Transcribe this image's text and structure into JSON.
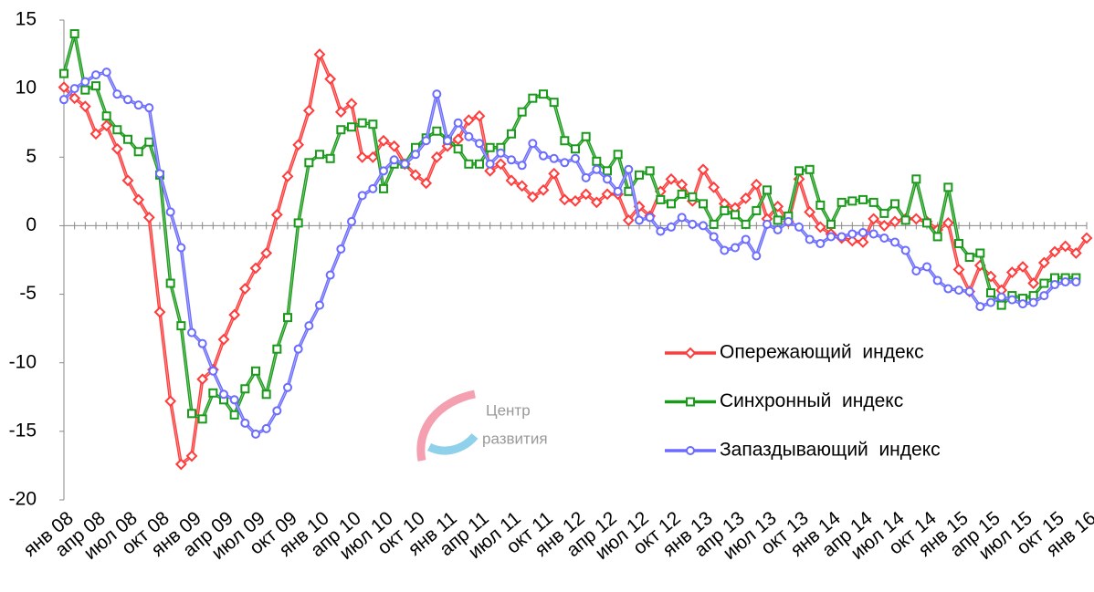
{
  "chart_data": {
    "type": "line",
    "categories": [
      "янв 08",
      null,
      null,
      "апр 08",
      null,
      null,
      "июл 08",
      null,
      null,
      "окт 08",
      null,
      null,
      "янв 09",
      null,
      null,
      "апр 09",
      null,
      null,
      "июл 09",
      null,
      null,
      "окт 09",
      null,
      null,
      "янв 10",
      null,
      null,
      "апр 10",
      null,
      null,
      "июл 10",
      null,
      null,
      "окт 10",
      null,
      null,
      "янв 11",
      null,
      null,
      "апр 11",
      null,
      null,
      "июл 11",
      null,
      null,
      "окт 11",
      null,
      null,
      "янв 12",
      null,
      null,
      "апр 12",
      null,
      null,
      "июл 12",
      null,
      null,
      "окт 12",
      null,
      null,
      "янв 13",
      null,
      null,
      "апр 13",
      null,
      null,
      "июл 13",
      null,
      null,
      "окт 13",
      null,
      null,
      "янв 14",
      null,
      null,
      "апр 14",
      null,
      null,
      "июл 14",
      null,
      null,
      "окт 14",
      null,
      null,
      "янв 15",
      null,
      null,
      "апр 15",
      null,
      null,
      "июл 15",
      null,
      null,
      "окт 15",
      null,
      null,
      "янв 16"
    ],
    "series": [
      {
        "name": "Опережающий  индекс",
        "color": "#ff3b3b",
        "marker": "diamond",
        "values": [
          10.1,
          9.3,
          8.7,
          6.7,
          7.3,
          5.6,
          3.3,
          1.9,
          0.6,
          -6.3,
          -12.8,
          -17.4,
          -16.8,
          -11.2,
          -10.5,
          -8.3,
          -6.5,
          -4.6,
          -3.1,
          -2.0,
          0.8,
          3.6,
          5.9,
          8.4,
          12.5,
          10.7,
          8.3,
          8.9,
          5.0,
          5.0,
          6.2,
          5.8,
          4.5,
          3.7,
          3.1,
          5.0,
          5.8,
          6.3,
          7.7,
          8.0,
          4.0,
          4.5,
          3.3,
          2.9,
          2.1,
          2.6,
          3.8,
          1.9,
          1.8,
          2.3,
          1.7,
          2.3,
          2.3,
          0.4,
          1.4,
          0.7,
          2.5,
          3.4,
          3.0,
          1.8,
          4.1,
          2.8,
          1.6,
          1.3,
          2.0,
          3.0,
          0.5,
          1.4,
          0.3,
          3.4,
          1.0,
          -0.1,
          -0.6,
          -0.9,
          -1.1,
          -1.2,
          0.5,
          0.0,
          0.3,
          0.5,
          0.5,
          0.3,
          -0.3,
          0.2,
          -3.2,
          -4.8,
          -2.9,
          -3.7,
          -4.7,
          -3.4,
          -3.0,
          -4.2,
          -2.7,
          -1.9,
          -1.5,
          -2.0,
          -0.9
        ]
      },
      {
        "name": "Синхронный  индекс",
        "color": "#1a9a1a",
        "marker": "square",
        "values": [
          11.1,
          14.0,
          9.9,
          10.2,
          8.0,
          7.0,
          6.3,
          5.4,
          6.1,
          3.7,
          -4.2,
          -7.3,
          -13.7,
          -14.1,
          -12.2,
          -12.7,
          -13.8,
          -11.9,
          -10.6,
          -12.3,
          -9.0,
          -6.7,
          0.2,
          4.6,
          5.2,
          4.9,
          7.0,
          7.2,
          7.5,
          7.4,
          2.7,
          4.5,
          4.5,
          5.7,
          6.4,
          6.9,
          6.3,
          5.6,
          4.5,
          4.5,
          5.7,
          5.7,
          6.7,
          8.3,
          9.3,
          9.6,
          9.0,
          6.2,
          5.6,
          6.5,
          4.7,
          4.0,
          5.2,
          2.5,
          3.7,
          4.0,
          1.9,
          1.6,
          2.3,
          2.1,
          1.6,
          0.1,
          1.1,
          0.8,
          0.1,
          1.1,
          2.6,
          0.4,
          0.7,
          4.0,
          4.1,
          1.5,
          0.1,
          1.7,
          1.8,
          1.9,
          1.7,
          0.9,
          1.6,
          0.4,
          3.4,
          0.2,
          -0.8,
          2.8,
          -1.3,
          -2.3,
          -2.0,
          -4.9,
          -5.8,
          -5.1,
          -5.3,
          -5.1,
          -4.2,
          -3.8,
          -3.8,
          -3.8,
          null
        ]
      },
      {
        "name": "Запаздывающий  индекс",
        "color": "#6b6bff",
        "marker": "circle",
        "values": [
          9.2,
          10.0,
          10.5,
          11.0,
          11.2,
          9.6,
          9.2,
          8.8,
          8.6,
          3.8,
          1.0,
          -1.6,
          -7.8,
          -8.6,
          -10.6,
          -12.3,
          -12.7,
          -14.4,
          -15.2,
          -14.8,
          -13.5,
          -11.8,
          -9.0,
          -7.3,
          -5.8,
          -3.6,
          -1.7,
          0.3,
          2.2,
          2.7,
          4.0,
          4.8,
          4.5,
          5.2,
          6.2,
          9.6,
          6.2,
          7.5,
          6.5,
          6.0,
          4.5,
          5.3,
          4.8,
          4.4,
          6.0,
          5.1,
          4.9,
          4.6,
          4.9,
          3.5,
          4.1,
          3.4,
          2.5,
          4.1,
          0.4,
          0.6,
          -0.4,
          -0.1,
          0.6,
          0.1,
          0.0,
          -0.8,
          -1.8,
          -1.6,
          -1.0,
          -2.2,
          0.1,
          -0.3,
          0.3,
          -0.1,
          -1.0,
          -1.3,
          -0.8,
          -0.8,
          -0.6,
          -0.5,
          -0.6,
          -0.9,
          -1.2,
          -1.8,
          -3.3,
          -3.0,
          -4.0,
          -4.6,
          -4.7,
          -4.8,
          -5.9,
          -5.6,
          -5.2,
          -5.4,
          -5.7,
          -5.6,
          -5.1,
          -4.3,
          -4.1,
          -4.1,
          null
        ]
      }
    ],
    "ylim": [
      -20,
      15
    ],
    "yticks": [
      -20,
      -15,
      -10,
      -5,
      0,
      5,
      10,
      15
    ],
    "grid": false,
    "legend": "right",
    "watermark": [
      "Центр",
      "развития"
    ]
  }
}
